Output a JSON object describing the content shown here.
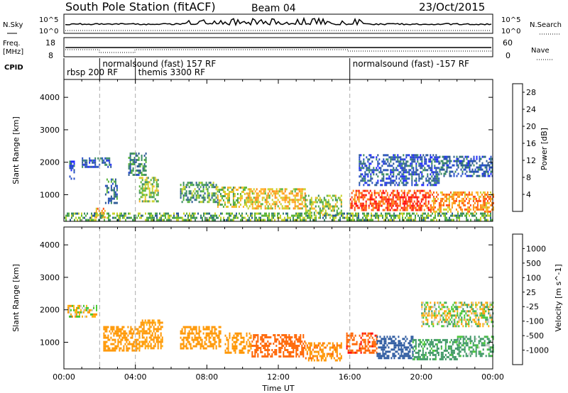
{
  "header": {
    "title": "South Pole Station (fitACF)",
    "beam": "Beam 04",
    "date": "23/Oct/2015"
  },
  "top_panels": {
    "nsky_label": "N.Sky",
    "nsearch_label": "N.Search",
    "noise_ticks_left": [
      "10^5",
      "10^0"
    ],
    "noise_ticks_right": [
      "10^5",
      "10^0"
    ],
    "freq_label_line1": "Freq.",
    "freq_label_line2": "[MHz]",
    "freq_ticks": [
      "18",
      "8"
    ],
    "nave_label": "Nave",
    "nave_ticks": [
      "60",
      "0"
    ],
    "cpid_label": "CPID"
  },
  "cpid_segments": [
    {
      "start_hour": 0.0,
      "label": "rbsp 200 RF",
      "row": 1
    },
    {
      "start_hour": 2.0,
      "label": "normalsound (fast) 157 RF",
      "row": 0
    },
    {
      "start_hour": 4.0,
      "label": "themis 3300 RF",
      "row": 1
    },
    {
      "start_hour": 16.0,
      "label": "normalsound (fast) -157 RF",
      "row": 0
    }
  ],
  "colors": {
    "power_scale": [
      "#1e28ff",
      "#2850c8",
      "#2d5a96",
      "#3c8c64",
      "#5ab43c",
      "#c8d22d",
      "#ffb428",
      "#ff8c14",
      "#ff5014",
      "#ff0a0a"
    ],
    "velocity_scale": [
      "#ff0000",
      "#ff6400",
      "#ff9600",
      "#ffb414",
      "#c8c8c8",
      "#c8c8c8",
      "#46c832",
      "#3c9664",
      "#2d5aa0",
      "#1e28ff"
    ]
  },
  "chart_data": [
    {
      "type": "heatmap",
      "title": "",
      "xlabel": "",
      "ylabel": "Slant Range [km]",
      "xlim_hours": [
        0,
        24
      ],
      "ylim": [
        180,
        4550
      ],
      "yticks": [
        1000,
        2000,
        3000,
        4000
      ],
      "yticklabels": [
        "1000",
        "2000",
        "3000",
        "4000"
      ],
      "colorbar": {
        "label": "Power [dB]",
        "ticks": [
          "4",
          "8",
          "12",
          "16",
          "20",
          "24",
          "28"
        ],
        "range": [
          0,
          30
        ]
      },
      "bands": [
        {
          "hours": [
            0.3,
            0.6
          ],
          "range_km": [
            1500,
            2050
          ],
          "value": 5
        },
        {
          "hours": [
            1.0,
            2.6
          ],
          "range_km": [
            1850,
            2150
          ],
          "value": 6
        },
        {
          "hours": [
            2.3,
            3.0
          ],
          "range_km": [
            750,
            1500
          ],
          "value": 9
        },
        {
          "hours": [
            1.7,
            2.3
          ],
          "range_km": [
            300,
            600
          ],
          "value": 22
        },
        {
          "hours": [
            3.6,
            4.6
          ],
          "range_km": [
            1600,
            2300
          ],
          "value": 10
        },
        {
          "hours": [
            4.2,
            5.3
          ],
          "range_km": [
            800,
            1550
          ],
          "value": 14
        },
        {
          "hours": [
            6.5,
            8.6
          ],
          "range_km": [
            800,
            1400
          ],
          "value": 12
        },
        {
          "hours": [
            8.5,
            10.2
          ],
          "range_km": [
            650,
            1250
          ],
          "value": 16
        },
        {
          "hours": [
            10.2,
            13.5
          ],
          "range_km": [
            550,
            1200
          ],
          "value": 19
        },
        {
          "hours": [
            13.5,
            15.5
          ],
          "range_km": [
            400,
            1000
          ],
          "value": 15
        },
        {
          "hours": [
            16.0,
            20.5
          ],
          "range_km": [
            550,
            1150
          ],
          "value": 26
        },
        {
          "hours": [
            20.5,
            24.0
          ],
          "range_km": [
            500,
            1100
          ],
          "value": 22
        },
        {
          "hours": [
            16.5,
            21.0
          ],
          "range_km": [
            1300,
            2250
          ],
          "value": 6
        },
        {
          "hours": [
            21.0,
            24.0
          ],
          "range_km": [
            1600,
            2200
          ],
          "value": 7
        },
        {
          "hours": [
            0.0,
            24.0
          ],
          "range_km": [
            200,
            450
          ],
          "value": 13
        }
      ]
    },
    {
      "type": "heatmap",
      "title": "",
      "xlabel": "Time UT",
      "ylabel": "Slant Range [km]",
      "xlim_hours": [
        0,
        24
      ],
      "ylim": [
        180,
        4550
      ],
      "xticklabels": [
        "00:00",
        "04:00",
        "08:00",
        "12:00",
        "16:00",
        "20:00",
        "00:00"
      ],
      "yticks": [
        1000,
        2000,
        3000,
        4000
      ],
      "yticklabels": [
        "1000",
        "2000",
        "3000",
        "4000"
      ],
      "colorbar": {
        "label": "Velocity [m s^-1]",
        "ticks": [
          "-1000",
          "-500",
          "-100",
          "-25",
          "25",
          "100",
          "500",
          "1000"
        ]
      },
      "bands": [
        {
          "hours": [
            0.2,
            1.8
          ],
          "range_km": [
            1800,
            2150
          ],
          "value": -25
        },
        {
          "hours": [
            2.2,
            4.2
          ],
          "range_km": [
            750,
            1500
          ],
          "value": -300
        },
        {
          "hours": [
            4.2,
            5.5
          ],
          "range_km": [
            800,
            1700
          ],
          "value": -200
        },
        {
          "hours": [
            6.5,
            8.8
          ],
          "range_km": [
            800,
            1500
          ],
          "value": -250
        },
        {
          "hours": [
            9.0,
            10.5
          ],
          "range_km": [
            650,
            1300
          ],
          "value": -300
        },
        {
          "hours": [
            10.5,
            13.5
          ],
          "range_km": [
            550,
            1250
          ],
          "value": -700
        },
        {
          "hours": [
            13.5,
            15.5
          ],
          "range_km": [
            450,
            1000
          ],
          "value": -400
        },
        {
          "hours": [
            15.8,
            17.5
          ],
          "range_km": [
            700,
            1300
          ],
          "value": -900
        },
        {
          "hours": [
            17.5,
            19.5
          ],
          "range_km": [
            500,
            1200
          ],
          "value": 800
        },
        {
          "hours": [
            19.5,
            22.0
          ],
          "range_km": [
            500,
            1100
          ],
          "value": 200
        },
        {
          "hours": [
            22.0,
            24.0
          ],
          "range_km": [
            600,
            1200
          ],
          "value": 150
        },
        {
          "hours": [
            20.0,
            24.0
          ],
          "range_km": [
            1500,
            2250
          ],
          "value": 0
        }
      ]
    }
  ]
}
